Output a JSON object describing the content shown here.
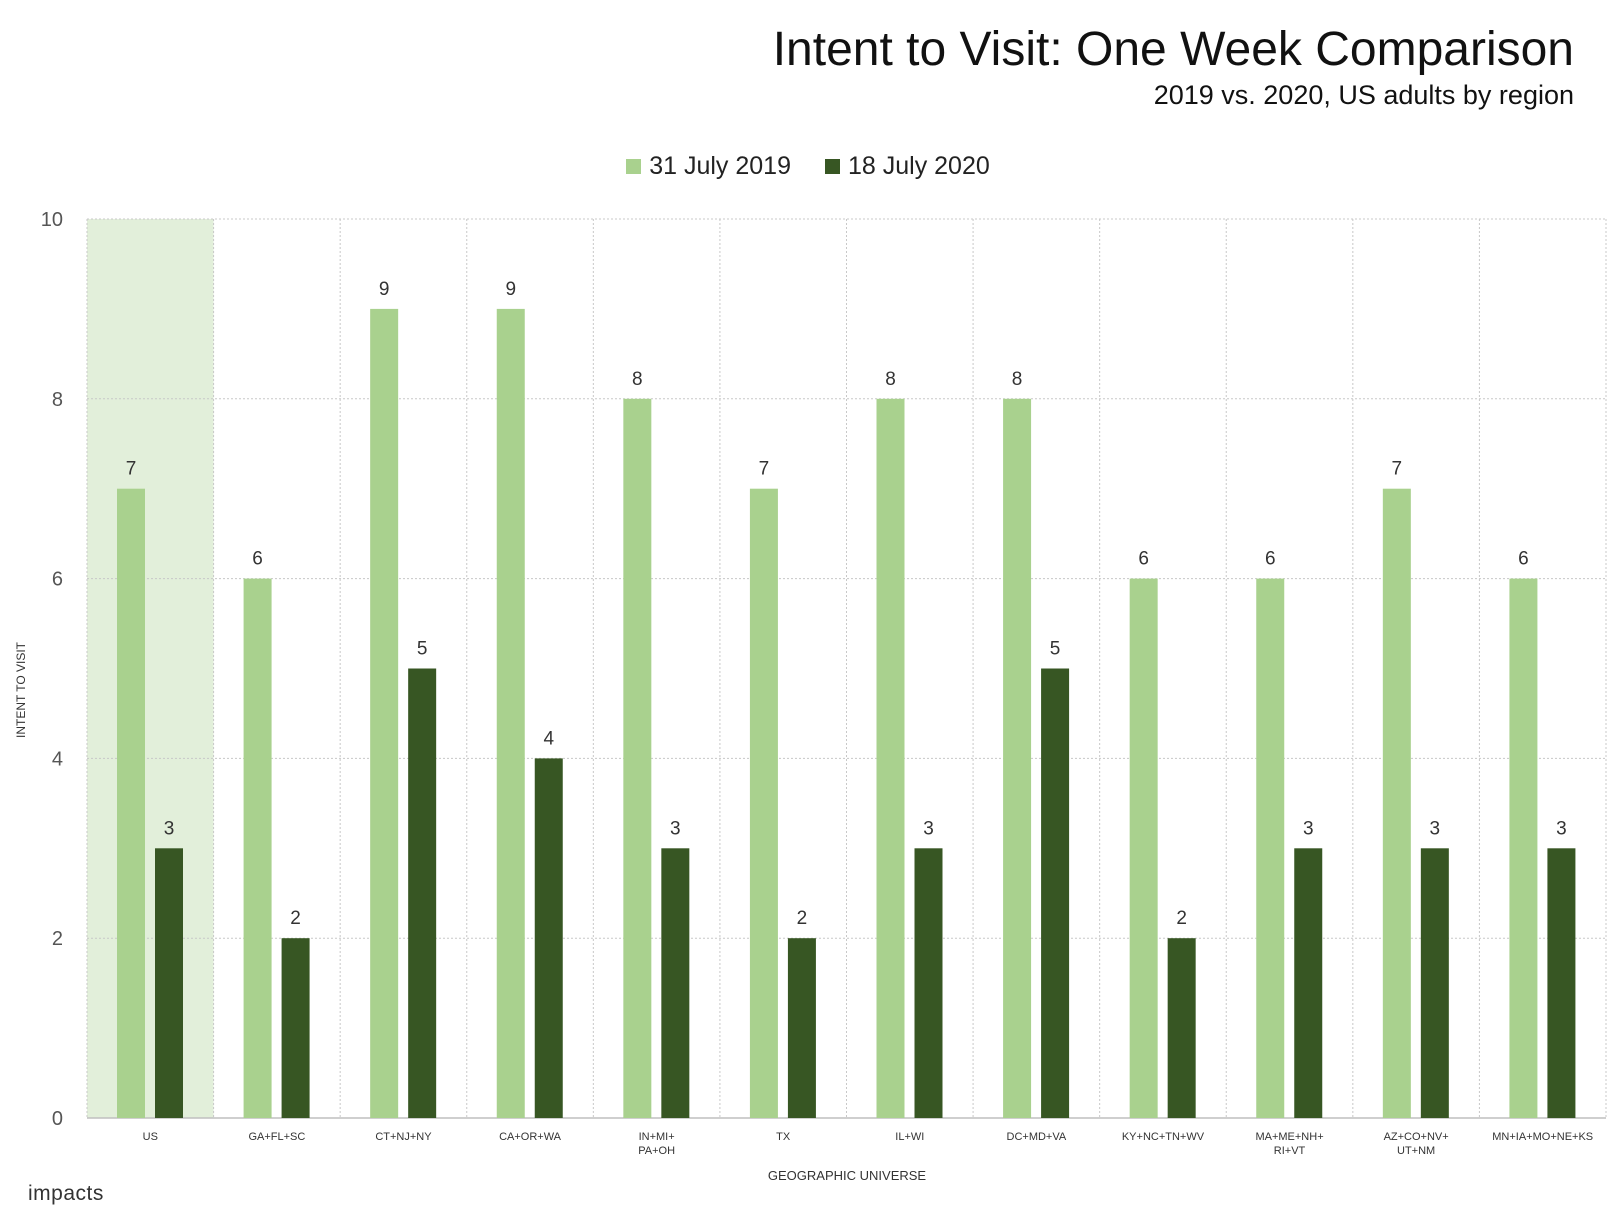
{
  "chart_data": {
    "type": "bar",
    "title": "Intent to Visit: One Week Comparison",
    "subtitle": "2019 vs. 2020, US adults by region",
    "xlabel": "GEOGRAPHIC UNIVERSE",
    "ylabel": "INTENT TO VISIT",
    "ylim": [
      0,
      10
    ],
    "yticks": [
      0,
      2,
      4,
      6,
      8,
      10
    ],
    "grid": true,
    "legend_position": "top-center",
    "highlighted_category": "US",
    "categories": [
      "US",
      "GA+FL+SC",
      "CT+NJ+NY",
      "CA+OR+WA",
      "IN+MI+\nPA+OH",
      "TX",
      "IL+WI",
      "DC+MD+VA",
      "KY+NC+TN+WV",
      "MA+ME+NH+\nRI+VT",
      "AZ+CO+NV+\nUT+NM",
      "MN+IA+MO+NE+KS"
    ],
    "series": [
      {
        "name": "31 July 2019",
        "color": "#a9d18e",
        "values": [
          7,
          6,
          9,
          9,
          8,
          7,
          8,
          8,
          6,
          6,
          7,
          6
        ]
      },
      {
        "name": "18 July 2020",
        "color": "#375623",
        "values": [
          3,
          2,
          5,
          4,
          3,
          2,
          3,
          5,
          2,
          3,
          3,
          3
        ]
      }
    ],
    "colors": {
      "highlight": "#e2efda",
      "grid": "#c8c8c8",
      "axis": "#bfbfbf"
    }
  },
  "brand": "impacts"
}
